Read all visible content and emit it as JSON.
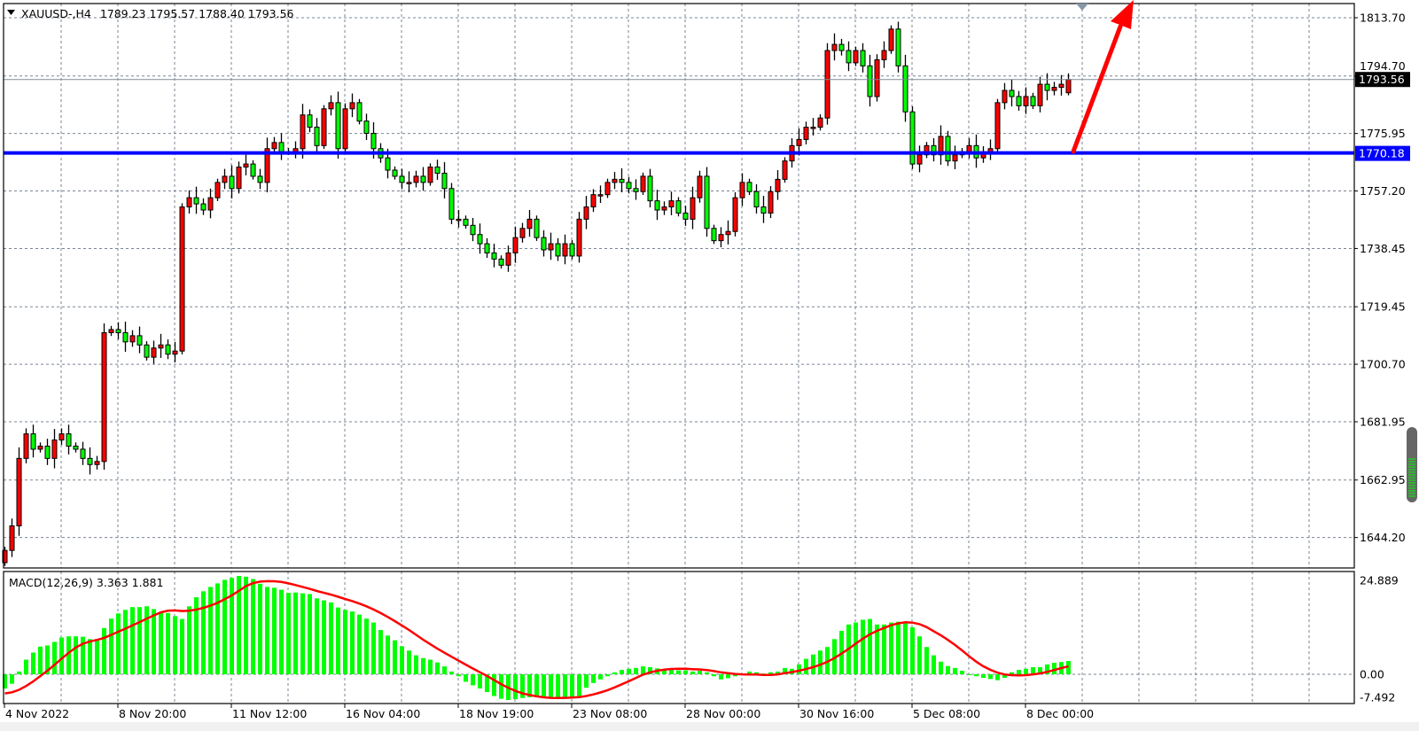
{
  "header": {
    "symbol_timeframe": "XAUUSD-,H4",
    "ohlc_text": "1789.23 1795.57 1788.40 1793.56"
  },
  "colors": {
    "background": "#ffffff",
    "bull_candle": "#ff0000",
    "bear_candle": "#00ff00",
    "level_line": "#0000ff",
    "macd_histogram": "#00ff00",
    "macd_signal": "#ff0000",
    "arrow": "#ff0000"
  },
  "chart_data": [
    {
      "type": "candlestick",
      "symbol": "XAUUSD-",
      "timeframe": "H4",
      "last_bar": {
        "open": 1789.23,
        "high": 1795.57,
        "low": 1788.4,
        "close": 1793.56
      },
      "closes": [
        1640,
        1648,
        1670,
        1678,
        1673,
        1674,
        1670,
        1676,
        1678,
        1674,
        1673,
        1670,
        1668,
        1669,
        1711,
        1712,
        1711,
        1708,
        1710,
        1707,
        1703,
        1706,
        1707,
        1704,
        1705,
        1752,
        1755,
        1753,
        1751,
        1755,
        1760,
        1762,
        1758,
        1765,
        1766,
        1762,
        1760,
        1771,
        1773,
        1770,
        1770,
        1771,
        1782,
        1778,
        1772,
        1784,
        1786,
        1771,
        1784,
        1786,
        1780,
        1776,
        1771,
        1768,
        1764,
        1762,
        1760,
        1760,
        1762,
        1760,
        1765,
        1763,
        1758,
        1748,
        1748,
        1746,
        1743,
        1740,
        1737,
        1735,
        1733,
        1737,
        1742,
        1745,
        1748,
        1742,
        1738,
        1740,
        1736,
        1740,
        1736,
        1748,
        1752,
        1756,
        1756,
        1760,
        1761,
        1760,
        1758,
        1757,
        1762,
        1754,
        1751,
        1752,
        1754,
        1750,
        1748,
        1755,
        1762,
        1745,
        1741,
        1743,
        1744,
        1755,
        1760,
        1757,
        1752,
        1750,
        1757,
        1761,
        1767,
        1772,
        1774,
        1778,
        1778,
        1781,
        1803,
        1805,
        1803,
        1799,
        1803,
        1798,
        1788,
        1800,
        1803,
        1810,
        1798,
        1783,
        1766,
        1769,
        1772,
        1769,
        1775,
        1767,
        1769,
        1770,
        1772,
        1768,
        1770,
        1771,
        1786,
        1790,
        1788,
        1785,
        1788,
        1785,
        1792,
        1790,
        1791,
        1792,
        1793.56
      ],
      "ylim": [
        1644.2,
        1813.7
      ],
      "y_ticks": [
        "1813.70",
        "1794.70",
        "1775.95",
        "1757.20",
        "1738.45",
        "1719.45",
        "1700.70",
        "1681.95",
        "1662.95",
        "1644.20"
      ],
      "x_ticks": [
        "4 Nov 2022",
        "8 Nov 20:00",
        "11 Nov 12:00",
        "16 Nov 04:00",
        "18 Nov 19:00",
        "23 Nov 08:00",
        "28 Nov 00:00",
        "30 Nov 16:00",
        "5 Dec 08:00",
        "8 Dec 00:00"
      ],
      "current_price": {
        "value": 1793.56,
        "label": "1793.56"
      },
      "horizontal_level": {
        "value": 1770.18,
        "label": "1770.18"
      },
      "annotation": "upward red arrow drawn from 1770.18 level",
      "grid": true
    },
    {
      "type": "bar+line",
      "title": "MACD(12,26,9) 3.363 1.881",
      "params": {
        "fast": 12,
        "slow": 26,
        "signal": 9
      },
      "macd_value": 3.363,
      "signal_value": 1.881,
      "histogram": [
        -3.6,
        -2.4,
        0.7,
        3.7,
        5.5,
        7.0,
        7.3,
        8.2,
        9.3,
        9.6,
        9.6,
        9.5,
        8.9,
        8.9,
        11.7,
        14.1,
        15.4,
        16.3,
        17.0,
        17.0,
        17.2,
        16.5,
        15.8,
        15.5,
        14.7,
        14.0,
        17.2,
        19.5,
        21.0,
        22.1,
        23.0,
        23.9,
        24.4,
        24.889,
        24.7,
        24.1,
        22.9,
        22.1,
        21.9,
        21.4,
        20.6,
        20.7,
        20.5,
        20.3,
        19.2,
        18.7,
        18.2,
        16.9,
        16.3,
        15.9,
        15.1,
        14.1,
        13.1,
        11.2,
        9.8,
        8.6,
        7.1,
        6.0,
        4.8,
        4.1,
        3.7,
        3.0,
        2.0,
        0.7,
        -0.5,
        -1.9,
        -2.8,
        -3.6,
        -4.5,
        -5.5,
        -6.2,
        -6.5,
        -6.3,
        -6.0,
        -5.8,
        -5.8,
        -5.8,
        -5.8,
        -5.8,
        -5.8,
        -5.8,
        -5.5,
        -3.4,
        -2.2,
        -1.3,
        -0.5,
        0.5,
        1.1,
        1.4,
        1.6,
        2.0,
        1.8,
        1.5,
        1.1,
        1.1,
        1.0,
        1.0,
        0.7,
        0.9,
        0.5,
        -0.5,
        -1.3,
        -1.0,
        -0.5,
        0,
        0.7,
        0.5,
        0.2,
        0.5,
        0.7,
        1.6,
        1.4,
        2.5,
        3.9,
        5.0,
        6.0,
        6.9,
        8.9,
        11.0,
        12.6,
        13.1,
        13.8,
        14.0,
        12.6,
        12.6,
        13.1,
        13.3,
        13.3,
        11.9,
        9.6,
        6.9,
        4.8,
        3.2,
        2.1,
        1.6,
        0.9,
        0,
        -0.5,
        -0.9,
        -1.2,
        -1.5,
        -0.9,
        0.5,
        1.1,
        1.4,
        1.8,
        1.8,
        2.5,
        2.9,
        3.1,
        3.363
      ],
      "ylim": [
        -7.492,
        24.889
      ],
      "y_ticks": [
        "24.889",
        "0.00",
        "-7.492"
      ]
    }
  ]
}
